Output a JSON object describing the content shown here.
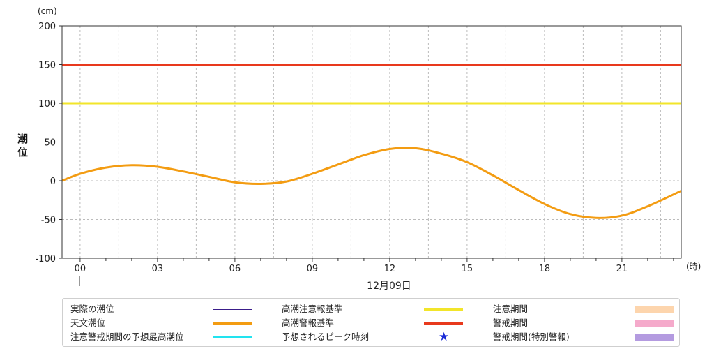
{
  "chart_data": {
    "type": "line",
    "y_unit_label": "(cm)",
    "ylabel": "潮位",
    "x_unit_label": "(時)",
    "date_label": "12月09日",
    "ylim": [
      -100,
      200
    ],
    "xlim": [
      -0.7,
      23.3
    ],
    "y_ticks": [
      200,
      150,
      100,
      50,
      0,
      -50,
      -100
    ],
    "x_ticks": [
      {
        "value": 0,
        "label": "00"
      },
      {
        "value": 3,
        "label": "03"
      },
      {
        "value": 6,
        "label": "06"
      },
      {
        "value": 9,
        "label": "09"
      },
      {
        "value": 12,
        "label": "12"
      },
      {
        "value": 15,
        "label": "15"
      },
      {
        "value": 18,
        "label": "18"
      },
      {
        "value": 21,
        "label": "21"
      }
    ],
    "grid": true,
    "series": [
      {
        "name": "天文潮位",
        "color": "#f39c12",
        "x": [
          -0.7,
          0,
          1,
          2,
          3,
          4,
          5,
          6,
          7,
          8,
          9,
          10,
          11,
          12,
          13,
          14,
          15,
          16,
          17,
          18,
          19,
          20,
          21,
          22,
          23.3
        ],
        "values": [
          0,
          9,
          17,
          20,
          18,
          12,
          5,
          -2,
          -4,
          -1,
          9,
          21,
          33,
          41,
          42,
          35,
          24,
          7,
          -12,
          -30,
          -43,
          -48,
          -45,
          -33,
          -13
        ]
      }
    ],
    "reference_lines": [
      {
        "name": "高潮注意報基準",
        "value": 100,
        "color": "#f2e52a"
      },
      {
        "name": "高潮警報基準",
        "value": 150,
        "color": "#e8391d"
      }
    ]
  },
  "legend": {
    "items": [
      {
        "label": "実際の潮位",
        "kind": "line",
        "color": "#3a1d8a",
        "thickness": 1
      },
      {
        "label": "天文潮位",
        "kind": "line",
        "color": "#f39c12",
        "thickness": 3
      },
      {
        "label": "注意警戒期間の予想最高潮位",
        "kind": "line",
        "color": "#22e3ef",
        "thickness": 3
      },
      {
        "label": "高潮注意報基準",
        "kind": "line",
        "color": "#f2e52a",
        "thickness": 3
      },
      {
        "label": "高潮警報基準",
        "kind": "line",
        "color": "#e8391d",
        "thickness": 3
      },
      {
        "label": "予想されるピーク時刻",
        "kind": "star",
        "color": "#1a2bd6",
        "symbol": "★"
      },
      {
        "label": "注意期間",
        "kind": "box",
        "color": "#fdd5ad"
      },
      {
        "label": "警戒期間",
        "kind": "box",
        "color": "#f5aacb"
      },
      {
        "label": "警戒期間(特別警報)",
        "kind": "box",
        "color": "#b49be0"
      }
    ]
  }
}
